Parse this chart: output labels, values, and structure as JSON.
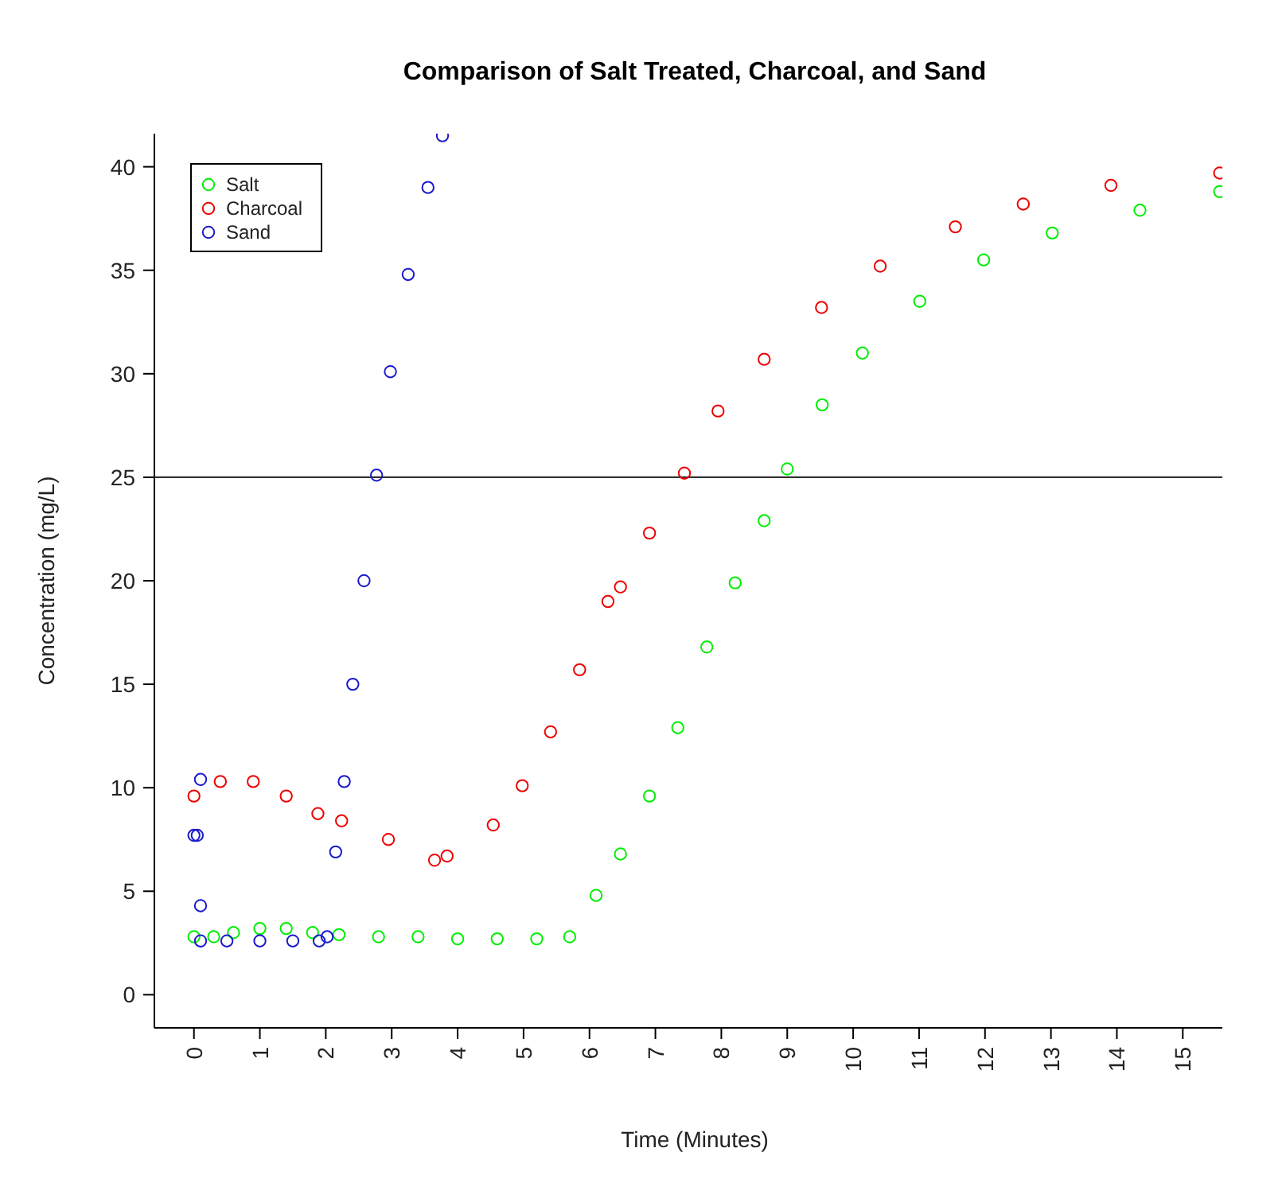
{
  "chart_data": {
    "type": "scatter",
    "title": "Comparison of Salt Treated, Charcoal, and Sand",
    "xlabel": "Time (Minutes)",
    "ylabel": "Concentration (mg/L)",
    "xlim": [
      -0.6,
      15.6
    ],
    "ylim": [
      -1.6,
      41.6
    ],
    "xticks": [
      0,
      1,
      2,
      3,
      4,
      5,
      6,
      7,
      8,
      9,
      10,
      11,
      12,
      13,
      14,
      15
    ],
    "yticks": [
      0,
      5,
      10,
      15,
      20,
      25,
      30,
      35,
      40
    ],
    "marker": "circle",
    "legend": "top left",
    "grid": false,
    "ref_lines": [
      {
        "axis": "y",
        "value": 25,
        "color": "#333333"
      }
    ],
    "series": [
      {
        "name": "Salt",
        "color": "#00ee00",
        "x": [
          0,
          0.3,
          0.6,
          1.0,
          1.4,
          1.8,
          2.2,
          2.8,
          3.4,
          4.0,
          4.6,
          5.2,
          5.7,
          6.1,
          6.47,
          6.91,
          7.34,
          7.78,
          8.21,
          8.65,
          9.0,
          9.53,
          10.14,
          11.01,
          11.98,
          13.02,
          14.35,
          15.56
        ],
        "values": [
          2.8,
          2.8,
          3.0,
          3.2,
          3.2,
          3.0,
          2.9,
          2.8,
          2.8,
          2.7,
          2.7,
          2.7,
          2.8,
          4.8,
          6.8,
          9.6,
          12.9,
          16.8,
          19.9,
          22.9,
          25.4,
          28.5,
          31.0,
          33.5,
          35.5,
          36.8,
          37.9,
          38.8
        ]
      },
      {
        "name": "Charcoal",
        "color": "#ee0000",
        "x": [
          0,
          0.4,
          0.9,
          1.4,
          1.88,
          2.24,
          2.95,
          3.65,
          3.84,
          4.54,
          4.98,
          5.41,
          5.85,
          6.28,
          6.47,
          6.91,
          7.44,
          7.95,
          8.65,
          9.52,
          10.41,
          11.55,
          12.58,
          13.91,
          15.56
        ],
        "values": [
          9.6,
          10.3,
          10.3,
          9.6,
          8.75,
          8.4,
          7.5,
          6.5,
          6.7,
          8.2,
          10.1,
          12.7,
          15.7,
          19.0,
          19.7,
          22.3,
          25.2,
          28.2,
          30.7,
          33.2,
          35.2,
          37.1,
          38.2,
          39.1,
          39.7
        ]
      },
      {
        "name": "Sand",
        "color": "#1a1acc",
        "x": [
          0,
          0.05,
          0.1,
          0.1,
          0.1,
          0.5,
          1,
          1.5,
          1.9,
          2.02,
          2.15,
          2.28,
          2.41,
          2.58,
          2.77,
          2.98,
          3.25,
          3.55,
          3.77
        ],
        "values": [
          7.7,
          7.7,
          10.4,
          4.3,
          2.6,
          2.6,
          2.6,
          2.6,
          2.6,
          2.8,
          6.9,
          10.3,
          15.0,
          20.0,
          25.1,
          30.1,
          34.8,
          39.0,
          41.5
        ]
      }
    ]
  }
}
